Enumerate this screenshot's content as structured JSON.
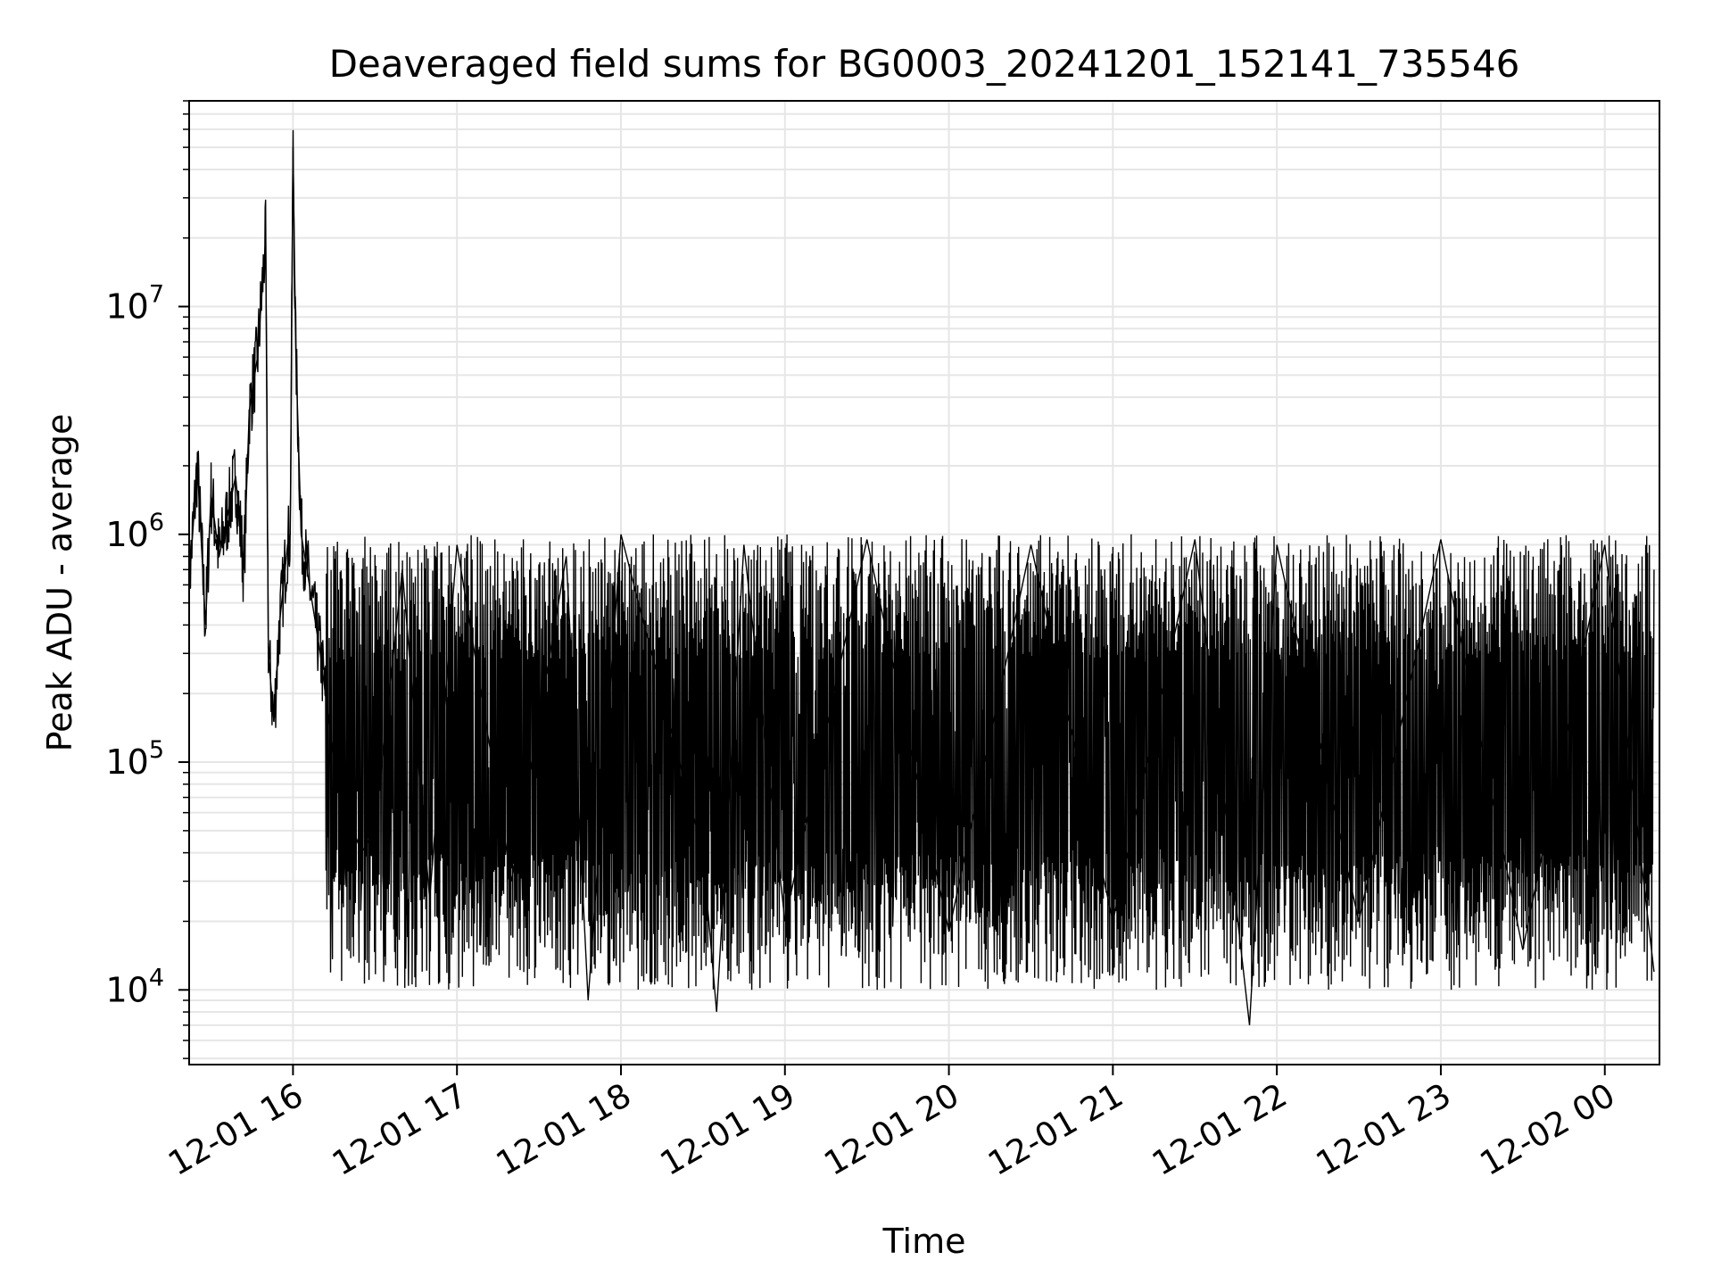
{
  "chart_data": {
    "type": "line",
    "title": "Deaveraged field sums for BG0003_20241201_152141_735546",
    "xlabel": "Time",
    "ylabel": "Peak ADU - average",
    "x_range": [
      "2024-12-01 15:22:00",
      "2024-12-02 00:20:00"
    ],
    "yscale": "log",
    "ylim": [
      4700,
      80000000
    ],
    "x_ticks": [
      {
        "t": "2024-12-01 16:00",
        "label": "12-01 16"
      },
      {
        "t": "2024-12-01 17:00",
        "label": "12-01 17"
      },
      {
        "t": "2024-12-01 18:00",
        "label": "12-01 18"
      },
      {
        "t": "2024-12-01 19:00",
        "label": "12-01 19"
      },
      {
        "t": "2024-12-01 20:00",
        "label": "12-01 20"
      },
      {
        "t": "2024-12-01 21:00",
        "label": "12-01 21"
      },
      {
        "t": "2024-12-01 22:00",
        "label": "12-01 22"
      },
      {
        "t": "2024-12-01 23:00",
        "label": "12-01 23"
      },
      {
        "t": "2024-12-02 00:00",
        "label": "12-02 00"
      }
    ],
    "y_ticks": [
      {
        "v": 10000,
        "base": "10",
        "exp": "4"
      },
      {
        "v": 100000,
        "base": "10",
        "exp": "5"
      },
      {
        "v": 1000000,
        "base": "10",
        "exp": "6"
      },
      {
        "v": 10000000,
        "base": "10",
        "exp": "7"
      }
    ],
    "grid": true,
    "grid_color": "#e6e6e6",
    "line_color": "#000000",
    "series": [
      {
        "x": [
          "2024-12-01 15:22",
          "2024-12-01 15:25",
          "2024-12-01 15:28",
          "2024-12-01 15:30",
          "2024-12-01 15:33",
          "2024-12-01 15:36",
          "2024-12-01 15:39",
          "2024-12-01 15:42",
          "2024-12-01 15:44",
          "2024-12-01 15:47",
          "2024-12-01 15:50",
          "2024-12-01 15:51",
          "2024-12-01 15:53",
          "2024-12-01 15:55",
          "2024-12-01 15:58",
          "2024-12-01 15:59",
          "2024-12-01 16:00",
          "2024-12-01 16:01",
          "2024-12-01 16:03",
          "2024-12-01 16:06",
          "2024-12-01 16:10",
          "2024-12-01 16:15",
          "2024-12-01 16:20",
          "2024-12-01 16:25",
          "2024-12-01 16:30",
          "2024-12-01 16:40",
          "2024-12-01 16:50",
          "2024-12-01 17:00",
          "2024-12-01 17:20",
          "2024-12-01 17:40",
          "2024-12-01 17:48",
          "2024-12-01 18:00",
          "2024-12-01 18:30",
          "2024-12-01 18:35",
          "2024-12-01 18:45",
          "2024-12-01 19:00",
          "2024-12-01 19:30",
          "2024-12-01 20:00",
          "2024-12-01 20:30",
          "2024-12-01 21:00",
          "2024-12-01 21:30",
          "2024-12-01 21:50",
          "2024-12-01 22:00",
          "2024-12-01 22:30",
          "2024-12-01 23:00",
          "2024-12-01 23:30",
          "2024-12-02 00:00",
          "2024-12-02 00:18"
        ],
        "y": [
          600000,
          2000000,
          400000,
          1500000,
          800000,
          1200000,
          1800000,
          700000,
          3500000,
          6000000,
          20000000,
          300000,
          150000,
          400000,
          900000,
          1000000,
          50000000,
          6500000,
          1000000,
          600000,
          300000,
          100000,
          60000,
          40000,
          50000,
          700000,
          25000,
          900000,
          30000,
          800000,
          9000,
          1000000,
          40000,
          8000,
          900000,
          20000,
          950000,
          18000,
          900000,
          20000,
          950000,
          7000,
          900000,
          20000,
          950000,
          15000,
          900000,
          12000
        ]
      }
    ]
  }
}
